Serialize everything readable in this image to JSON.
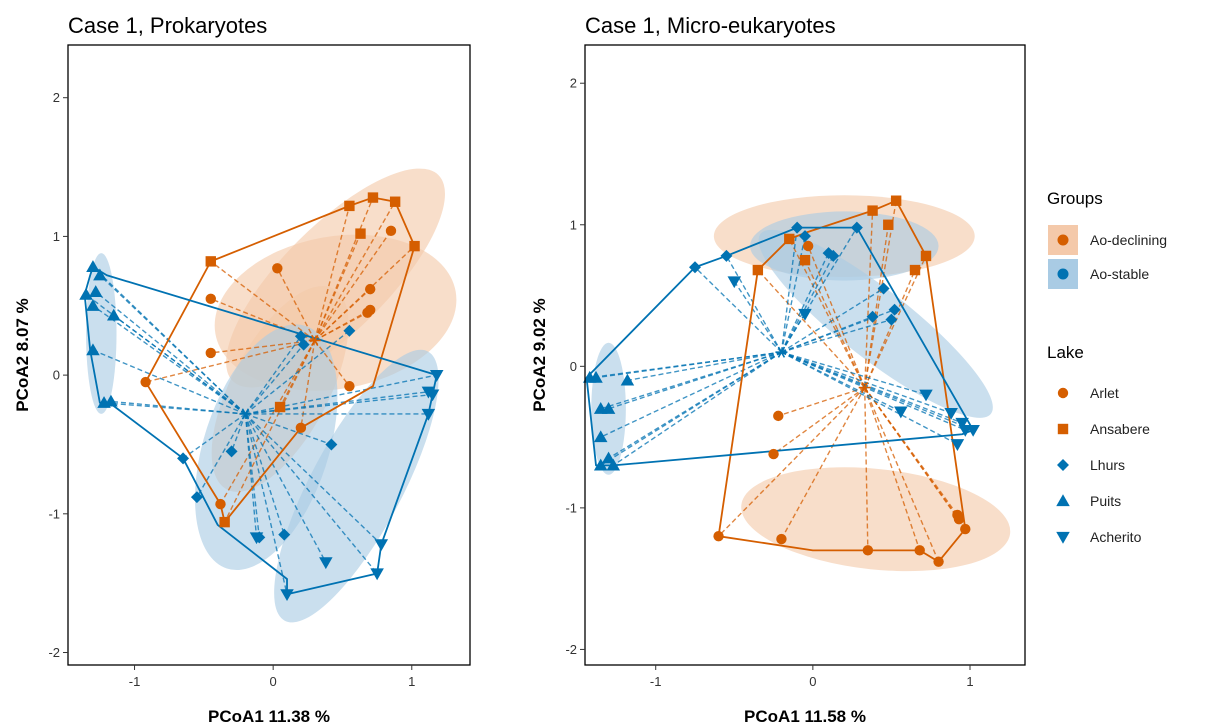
{
  "colors": {
    "declining": "#D55E00",
    "stable": "#0072B2",
    "declining_fill": "#F4C9AA",
    "stable_fill": "#A9CBE4"
  },
  "legend": {
    "groups_title": "Groups",
    "groups": [
      {
        "label": "Ao-declining",
        "color": "#D55E00",
        "fill": "#F4C9AA"
      },
      {
        "label": "Ao-stable",
        "color": "#0072B2",
        "fill": "#A9CBE4"
      }
    ],
    "lake_title": "Lake",
    "lakes": [
      {
        "label": "Arlet",
        "shape": "circle",
        "color": "#D55E00"
      },
      {
        "label": "Ansabere",
        "shape": "square",
        "color": "#D55E00"
      },
      {
        "label": "Lhurs",
        "shape": "diamond",
        "color": "#0072B2"
      },
      {
        "label": "Puits",
        "shape": "triangle-up",
        "color": "#0072B2"
      },
      {
        "label": "Acherito",
        "shape": "triangle-down",
        "color": "#0072B2"
      }
    ]
  },
  "chart_data": [
    {
      "type": "scatter",
      "title": "Case 1, Prokaryotes",
      "xlabel": "PCoA1  11.38 %",
      "ylabel": "PCoA2  8.07 %",
      "xlim": [
        -1.48,
        1.42
      ],
      "ylim": [
        -2.09,
        2.38
      ],
      "xticks": [
        -1,
        0,
        1
      ],
      "yticks": [
        -2,
        -1,
        0,
        1,
        2
      ],
      "grid": false,
      "groups": [
        {
          "name": "Ao-declining",
          "centroid": [
            0.3,
            0.25
          ],
          "hull": [
            [
              -0.45,
              0.82
            ],
            [
              0.55,
              1.22
            ],
            [
              0.72,
              1.28
            ],
            [
              0.88,
              1.25
            ],
            [
              1.02,
              0.93
            ],
            [
              0.72,
              -0.08
            ],
            [
              0.2,
              -0.38
            ],
            [
              -0.35,
              -1.06
            ],
            [
              -0.38,
              -0.93
            ],
            [
              -0.92,
              -0.05
            ]
          ],
          "ellipses": [
            {
              "center": [
                0.45,
                0.7
              ],
              "rx": 1.05,
              "ry": 0.38,
              "angle": 45
            },
            {
              "center": [
                0.45,
                0.45
              ],
              "rx": 0.88,
              "ry": 0.55,
              "angle": 10
            },
            {
              "center": [
                0.05,
                -0.1
              ],
              "rx": 0.82,
              "ry": 0.35,
              "angle": 62
            }
          ],
          "points": [
            {
              "lake": "Arlet",
              "x": -0.92,
              "y": -0.05
            },
            {
              "lake": "Arlet",
              "x": -0.45,
              "y": 0.55
            },
            {
              "lake": "Arlet",
              "x": -0.45,
              "y": 0.16
            },
            {
              "lake": "Arlet",
              "x": 0.03,
              "y": 0.77
            },
            {
              "lake": "Arlet",
              "x": 0.2,
              "y": -0.38
            },
            {
              "lake": "Arlet",
              "x": 0.55,
              "y": -0.08
            },
            {
              "lake": "Arlet",
              "x": 0.7,
              "y": 0.62
            },
            {
              "lake": "Arlet",
              "x": 0.7,
              "y": 0.47
            },
            {
              "lake": "Arlet",
              "x": 0.68,
              "y": 0.45
            },
            {
              "lake": "Arlet",
              "x": 0.85,
              "y": 1.04
            },
            {
              "lake": "Arlet",
              "x": -0.38,
              "y": -0.93
            },
            {
              "lake": "Ansabere",
              "x": -0.45,
              "y": 0.82
            },
            {
              "lake": "Ansabere",
              "x": 0.55,
              "y": 1.22
            },
            {
              "lake": "Ansabere",
              "x": 0.72,
              "y": 1.28
            },
            {
              "lake": "Ansabere",
              "x": 0.88,
              "y": 1.25
            },
            {
              "lake": "Ansabere",
              "x": 1.02,
              "y": 0.93
            },
            {
              "lake": "Ansabere",
              "x": 0.63,
              "y": 1.02
            },
            {
              "lake": "Ansabere",
              "x": 0.05,
              "y": -0.23
            },
            {
              "lake": "Ansabere",
              "x": -0.35,
              "y": -1.06
            }
          ]
        },
        {
          "name": "Ao-stable",
          "centroid": [
            -0.2,
            -0.28
          ],
          "hull": [
            [
              -1.3,
              0.78
            ],
            [
              -1.2,
              0.72
            ],
            [
              1.18,
              0.0
            ],
            [
              1.12,
              -0.28
            ],
            [
              0.78,
              -1.22
            ],
            [
              0.75,
              -1.43
            ],
            [
              0.1,
              -1.58
            ],
            [
              0.1,
              -1.47
            ],
            [
              -0.4,
              -1.08
            ],
            [
              -0.65,
              -0.6
            ],
            [
              -1.18,
              -0.2
            ],
            [
              -1.25,
              -0.2
            ],
            [
              -1.32,
              0.18
            ],
            [
              -1.36,
              0.58
            ],
            [
              -1.32,
              0.72
            ]
          ],
          "ellipses": [
            {
              "center": [
                -1.24,
                0.3
              ],
              "rx": 0.58,
              "ry": 0.11,
              "angle": 90
            },
            {
              "center": [
                -0.05,
                -0.52
              ],
              "rx": 0.92,
              "ry": 0.45,
              "angle": 72
            },
            {
              "center": [
                0.6,
                -0.8
              ],
              "rx": 1.1,
              "ry": 0.33,
              "angle": 62
            }
          ],
          "points": [
            {
              "lake": "Lhurs",
              "x": -0.65,
              "y": -0.6
            },
            {
              "lake": "Lhurs",
              "x": -0.55,
              "y": -0.88
            },
            {
              "lake": "Lhurs",
              "x": -0.3,
              "y": -0.55
            },
            {
              "lake": "Lhurs",
              "x": -0.1,
              "y": -1.17
            },
            {
              "lake": "Lhurs",
              "x": 0.08,
              "y": -1.15
            },
            {
              "lake": "Lhurs",
              "x": 0.2,
              "y": 0.28
            },
            {
              "lake": "Lhurs",
              "x": 0.22,
              "y": 0.22
            },
            {
              "lake": "Lhurs",
              "x": 0.55,
              "y": 0.32
            },
            {
              "lake": "Lhurs",
              "x": 0.42,
              "y": -0.5
            },
            {
              "lake": "Puits",
              "x": -1.3,
              "y": 0.78
            },
            {
              "lake": "Puits",
              "x": -1.25,
              "y": 0.72
            },
            {
              "lake": "Puits",
              "x": -1.35,
              "y": 0.58
            },
            {
              "lake": "Puits",
              "x": -1.28,
              "y": 0.6
            },
            {
              "lake": "Puits",
              "x": -1.3,
              "y": 0.5
            },
            {
              "lake": "Puits",
              "x": -1.3,
              "y": 0.18
            },
            {
              "lake": "Puits",
              "x": -1.22,
              "y": -0.2
            },
            {
              "lake": "Puits",
              "x": -1.17,
              "y": -0.19
            },
            {
              "lake": "Puits",
              "x": -1.15,
              "y": 0.43
            },
            {
              "lake": "Acherito",
              "x": 1.18,
              "y": 0.0
            },
            {
              "lake": "Acherito",
              "x": 1.12,
              "y": -0.12
            },
            {
              "lake": "Acherito",
              "x": 1.15,
              "y": -0.14
            },
            {
              "lake": "Acherito",
              "x": 1.12,
              "y": -0.28
            },
            {
              "lake": "Acherito",
              "x": 0.78,
              "y": -1.22
            },
            {
              "lake": "Acherito",
              "x": 0.75,
              "y": -1.43
            },
            {
              "lake": "Acherito",
              "x": 0.38,
              "y": -1.35
            },
            {
              "lake": "Acherito",
              "x": 0.1,
              "y": -1.58
            },
            {
              "lake": "Acherito",
              "x": -0.12,
              "y": -1.17
            }
          ]
        }
      ]
    },
    {
      "type": "scatter",
      "title": "Case 1, Micro-eukaryotes",
      "xlabel": "PCoA1  11.58 %",
      "ylabel": "PCoA2  9.02 %",
      "xlim": [
        -1.45,
        1.35
      ],
      "ylim": [
        -2.11,
        2.27
      ],
      "xticks": [
        -1,
        0,
        1
      ],
      "yticks": [
        -2,
        -1,
        0,
        1,
        2
      ],
      "grid": false,
      "groups": [
        {
          "name": "Ao-declining",
          "centroid": [
            0.33,
            -0.15
          ],
          "hull": [
            [
              -0.35,
              0.68
            ],
            [
              -0.15,
              0.9
            ],
            [
              -0.03,
              0.95
            ],
            [
              0.38,
              1.1
            ],
            [
              0.53,
              1.17
            ],
            [
              0.72,
              0.78
            ],
            [
              0.97,
              -1.15
            ],
            [
              0.8,
              -1.38
            ],
            [
              0.68,
              -1.3
            ],
            [
              0.0,
              -1.3
            ],
            [
              -0.6,
              -1.2
            ]
          ],
          "ellipses": [
            {
              "center": [
                0.2,
                0.92
              ],
              "rx": 0.83,
              "ry": 0.26,
              "angle": 0
            },
            {
              "center": [
                0.4,
                -1.08
              ],
              "rx": 0.86,
              "ry": 0.32,
              "angle": -6
            }
          ],
          "points": [
            {
              "lake": "Arlet",
              "x": -0.22,
              "y": -0.35
            },
            {
              "lake": "Arlet",
              "x": -0.25,
              "y": -0.62
            },
            {
              "lake": "Arlet",
              "x": -0.6,
              "y": -1.2
            },
            {
              "lake": "Arlet",
              "x": -0.2,
              "y": -1.22
            },
            {
              "lake": "Arlet",
              "x": 0.35,
              "y": -1.3
            },
            {
              "lake": "Arlet",
              "x": 0.68,
              "y": -1.3
            },
            {
              "lake": "Arlet",
              "x": 0.8,
              "y": -1.38
            },
            {
              "lake": "Arlet",
              "x": 0.92,
              "y": -1.05
            },
            {
              "lake": "Arlet",
              "x": 0.93,
              "y": -1.08
            },
            {
              "lake": "Arlet",
              "x": 0.97,
              "y": -1.15
            },
            {
              "lake": "Arlet",
              "x": -0.03,
              "y": 0.85
            },
            {
              "lake": "Ansabere",
              "x": -0.35,
              "y": 0.68
            },
            {
              "lake": "Ansabere",
              "x": -0.15,
              "y": 0.9
            },
            {
              "lake": "Ansabere",
              "x": -0.05,
              "y": 0.75
            },
            {
              "lake": "Ansabere",
              "x": 0.38,
              "y": 1.1
            },
            {
              "lake": "Ansabere",
              "x": 0.53,
              "y": 1.17
            },
            {
              "lake": "Ansabere",
              "x": 0.48,
              "y": 1.0
            },
            {
              "lake": "Ansabere",
              "x": 0.65,
              "y": 0.68
            },
            {
              "lake": "Ansabere",
              "x": 0.72,
              "y": 0.78
            }
          ]
        },
        {
          "name": "Ao-stable",
          "centroid": [
            -0.2,
            0.1
          ],
          "hull": [
            [
              -0.75,
              0.7
            ],
            [
              -0.55,
              0.78
            ],
            [
              -0.1,
              0.98
            ],
            [
              0.28,
              0.98
            ],
            [
              1.02,
              -0.45
            ],
            [
              0.95,
              -0.48
            ],
            [
              -1.27,
              -0.7
            ],
            [
              -1.38,
              -0.7
            ],
            [
              -1.44,
              -0.08
            ]
          ],
          "ellipses": [
            {
              "center": [
                -1.3,
                -0.3
              ],
              "rx": 0.42,
              "ry": 0.11,
              "angle": 90
            },
            {
              "center": [
                0.2,
                0.85
              ],
              "rx": 0.6,
              "ry": 0.22,
              "angle": 0
            },
            {
              "center": [
                0.4,
                0.3
              ],
              "rx": 0.93,
              "ry": 0.22,
              "angle": -38
            }
          ],
          "points": [
            {
              "lake": "Lhurs",
              "x": -0.75,
              "y": 0.7
            },
            {
              "lake": "Lhurs",
              "x": -0.55,
              "y": 0.78
            },
            {
              "lake": "Lhurs",
              "x": -0.1,
              "y": 0.98
            },
            {
              "lake": "Lhurs",
              "x": -0.05,
              "y": 0.92
            },
            {
              "lake": "Lhurs",
              "x": 0.1,
              "y": 0.8
            },
            {
              "lake": "Lhurs",
              "x": 0.13,
              "y": 0.78
            },
            {
              "lake": "Lhurs",
              "x": 0.28,
              "y": 0.98
            },
            {
              "lake": "Lhurs",
              "x": 0.45,
              "y": 0.55
            },
            {
              "lake": "Lhurs",
              "x": 0.52,
              "y": 0.4
            },
            {
              "lake": "Lhurs",
              "x": 0.38,
              "y": 0.35
            },
            {
              "lake": "Lhurs",
              "x": 0.5,
              "y": 0.33
            },
            {
              "lake": "Puits",
              "x": -1.42,
              "y": -0.08
            },
            {
              "lake": "Puits",
              "x": -1.38,
              "y": -0.08
            },
            {
              "lake": "Puits",
              "x": -1.35,
              "y": -0.3
            },
            {
              "lake": "Puits",
              "x": -1.3,
              "y": -0.3
            },
            {
              "lake": "Puits",
              "x": -1.35,
              "y": -0.5
            },
            {
              "lake": "Puits",
              "x": -1.3,
              "y": -0.65
            },
            {
              "lake": "Puits",
              "x": -1.27,
              "y": -0.7
            },
            {
              "lake": "Puits",
              "x": -1.35,
              "y": -0.7
            },
            {
              "lake": "Puits",
              "x": -1.18,
              "y": -0.1
            },
            {
              "lake": "Acherito",
              "x": -0.5,
              "y": 0.6
            },
            {
              "lake": "Acherito",
              "x": -0.05,
              "y": 0.37
            },
            {
              "lake": "Acherito",
              "x": 0.56,
              "y": -0.32
            },
            {
              "lake": "Acherito",
              "x": 0.72,
              "y": -0.2
            },
            {
              "lake": "Acherito",
              "x": 0.88,
              "y": -0.33
            },
            {
              "lake": "Acherito",
              "x": 0.95,
              "y": -0.4
            },
            {
              "lake": "Acherito",
              "x": 0.97,
              "y": -0.45
            },
            {
              "lake": "Acherito",
              "x": 1.02,
              "y": -0.45
            },
            {
              "lake": "Acherito",
              "x": 0.92,
              "y": -0.55
            }
          ]
        }
      ]
    }
  ]
}
